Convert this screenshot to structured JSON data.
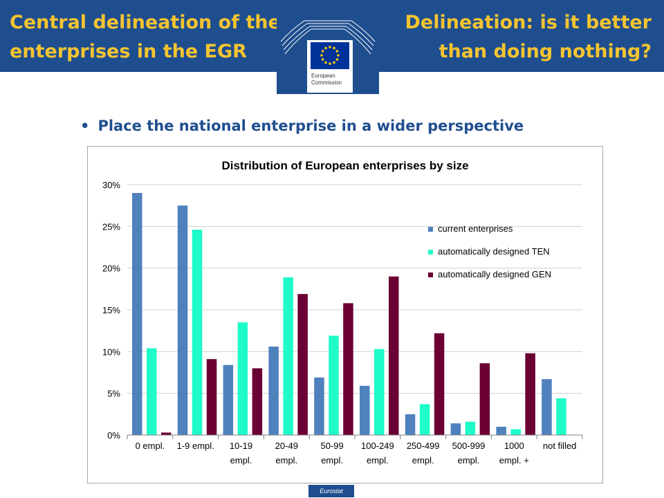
{
  "header": {
    "title_left": "Central delineation of the enterprises in the EGR",
    "title_right": "Delineation: is it better than doing nothing?",
    "logo_text_line1": "European",
    "logo_text_line2": "Commission",
    "banner_color": "#1f4e8f",
    "title_color": "#f4c430"
  },
  "bullet": {
    "text": "Place the national enterprise in a wider perspective"
  },
  "footer": {
    "label": "Eurostat"
  },
  "chart_data": {
    "type": "bar",
    "title": "Distribution of European enterprises by size",
    "xlabel": "",
    "ylabel": "",
    "ylim": [
      0,
      30
    ],
    "y_ticks": [
      "0%",
      "5%",
      "10%",
      "15%",
      "20%",
      "25%",
      "30%"
    ],
    "grid": true,
    "legend_position": "right",
    "categories": [
      [
        "0 empl."
      ],
      [
        "1-9 empl."
      ],
      [
        "10-19",
        "empl."
      ],
      [
        "20-49",
        "empl."
      ],
      [
        "50-99",
        "empl."
      ],
      [
        "100-249",
        "empl."
      ],
      [
        "250-499",
        "empl."
      ],
      [
        "500-999",
        "empl."
      ],
      [
        "1000",
        "empl. +"
      ],
      [
        "not filled"
      ]
    ],
    "series": [
      {
        "name": "current enterprises",
        "color": "#4f81bd",
        "values": [
          29.0,
          27.5,
          8.4,
          10.6,
          6.9,
          5.9,
          2.5,
          1.4,
          1.0,
          6.7
        ]
      },
      {
        "name": "automatically designed TEN",
        "color": "#1efcc8",
        "values": [
          10.4,
          24.6,
          13.5,
          18.9,
          11.9,
          10.3,
          3.7,
          1.6,
          0.7,
          4.4
        ]
      },
      {
        "name": "automatically designed GEN",
        "color": "#6b0035",
        "values": [
          0.3,
          9.1,
          8.0,
          16.9,
          15.8,
          19.0,
          12.2,
          8.6,
          9.8,
          0
        ]
      }
    ]
  }
}
